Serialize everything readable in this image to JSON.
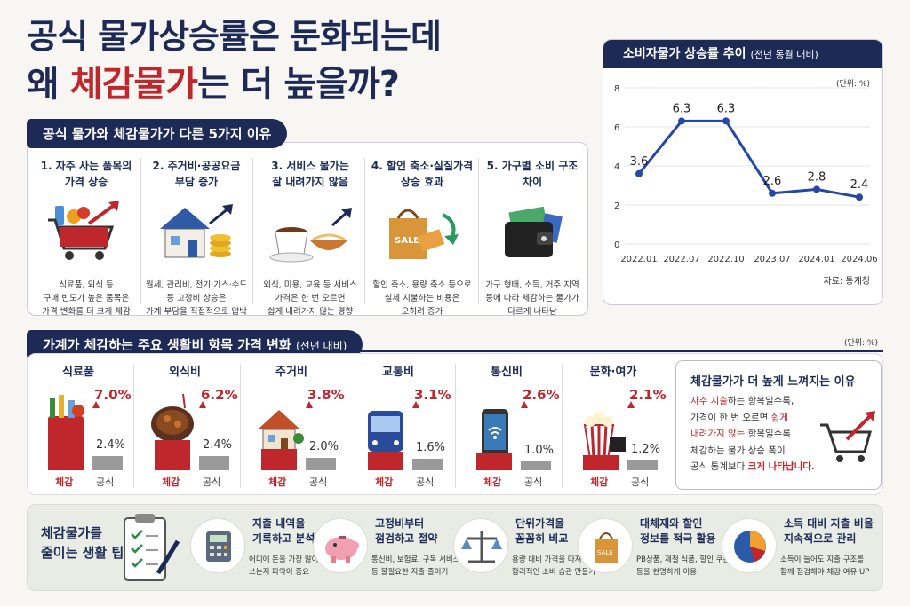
{
  "title": {
    "line1": "공식 물가상승률은 둔화되는데",
    "line2_pre": "왜 ",
    "line2_hl": "체감물가",
    "line2_post": "는 더 높을까?"
  },
  "reasons_header": "공식 물가와 체감물가가 다른 5가지 이유",
  "reasons": [
    {
      "title_a": "1. 자주 사는 품목의",
      "title_b": "가격 상승",
      "icon": "shopping-cart-icon",
      "body_a": "식료품, 외식 등",
      "body_b": "구매 빈도가 높은 품목은",
      "body_c": "가격 변화를 더 크게 체감"
    },
    {
      "title_a": "2. 주거비·공공요금",
      "title_b": "부담 증가",
      "icon": "house-coins-icon",
      "body_a": "월세, 관리비, 전기·가스·수도",
      "body_b": "등 고정비 상승은",
      "body_c": "가계 부담을 직접적으로 압박"
    },
    {
      "title_a": "3. 서비스 물가는",
      "title_b": "잘 내려가지 않음",
      "icon": "coffee-noodles-icon",
      "body_a": "외식, 미용, 교육 등 서비스",
      "body_b": "가격은 한 번 오르면",
      "body_c": "쉽게 내려가지 않는 경향"
    },
    {
      "title_a": "4. 할인 축소·실질가격",
      "title_b": "상승 효과",
      "icon": "sale-bag-icon",
      "body_a": "할인 축소, 용량 축소 등으로",
      "body_b": "실제 지불하는 비용은",
      "body_c": "오히려 증가"
    },
    {
      "title_a": "5. 가구별 소비 구조",
      "title_b": "차이",
      "icon": "wallet-icon",
      "body_a": "가구 형태, 소득, 거주 지역",
      "body_b": "등에 따라 체감하는 물가가",
      "body_c": "다르게 나타남"
    }
  ],
  "chart": {
    "header": "소비자물가 상승률 추이",
    "header_sub": "(전년 동월 대비)",
    "unit": "(단위: %)",
    "source": "자료: 통계청"
  },
  "chart_data": {
    "type": "line",
    "categories": [
      "2022.01",
      "2022.07",
      "2022.10",
      "2023.07",
      "2024.01",
      "2024.06"
    ],
    "values": [
      3.6,
      6.3,
      6.3,
      2.6,
      2.8,
      2.4
    ],
    "ylim": [
      0,
      8
    ],
    "yticks": [
      0,
      2,
      4,
      6,
      8
    ],
    "color": "#2447a8"
  },
  "items_header": "가계가 체감하는 주요 생활비 항목 가격 변화",
  "items_header_sub": "(전년 대비)",
  "items_unit": "(단위: %)",
  "items_data": {
    "type": "bar",
    "series_labels": {
      "felt": "체감",
      "official": "공식"
    },
    "categories": [
      "식료품",
      "외식비",
      "주거비",
      "교통비",
      "통신비",
      "문화·여가"
    ],
    "felt": [
      7.0,
      6.2,
      3.8,
      3.1,
      2.6,
      2.1
    ],
    "felt_labels": [
      "7.0%",
      "6.2%",
      "3.8%",
      "3.1%",
      "2.6%",
      "2.1%"
    ],
    "official": [
      2.4,
      2.4,
      2.0,
      1.6,
      1.0,
      1.2
    ],
    "official_labels": [
      "2.4%",
      "2.4%",
      "2.0%",
      "1.6%",
      "1.0%",
      "1.2%"
    ],
    "icons": [
      "grocery-basket-icon",
      "stew-bowl-icon",
      "house-icon",
      "bus-icon",
      "smartphone-icon",
      "popcorn-icon"
    ],
    "colors": {
      "felt": "#c0272d",
      "official": "#9a9a9a"
    }
  },
  "why": {
    "title": "체감물가가 더 높게 느껴지는 이유",
    "l1a": "자주 지출",
    "l1b": "하는 항목일수록,",
    "l2a": "가격이 한 번 오르면 ",
    "l2b": "쉽게",
    "l3a": "내려가지 않는",
    "l3b": " 항목일수록",
    "l4": "체감하는 물가 상승 폭이",
    "l5a": "공식 통계보다 ",
    "l5b": "크게 나타납니다."
  },
  "tips": {
    "heading_a": "체감물가를",
    "heading_b": "줄이는 생활 팁",
    "items": [
      {
        "title_a": "지출 내역을",
        "title_b": "기록하고 분석",
        "icon": "calculator-icon",
        "body_a": "어디에 돈을 가장 많이",
        "body_b": "쓰는지 파악이 중요"
      },
      {
        "title_a": "고정비부터",
        "title_b": "점검하고 절약",
        "icon": "piggy-bank-icon",
        "body_a": "통신비, 보험료, 구독 서비스",
        "body_b": "등 불필요한 지출 줄이기"
      },
      {
        "title_a": "단위가격을",
        "title_b": "꼼꼼히 비교",
        "icon": "scale-icon",
        "body_a": "용량 대비 가격을 따져",
        "body_b": "합리적인 소비 습관 만들기"
      },
      {
        "title_a": "대체재와 할인",
        "title_b": "정보를 적극 활용",
        "icon": "shopping-bag-icon",
        "body_a": "PB상품, 제철 식품, 할인 쿠폰",
        "body_b": "등을 현명하게 이용"
      },
      {
        "title_a": "소득 대비 지출 비율",
        "title_b": "지속적으로 관리",
        "icon": "pie-chart-icon",
        "body_a": "소득이 늘어도 지출 구조를",
        "body_b": "함께 점검해야 체감 여유 UP"
      }
    ]
  }
}
